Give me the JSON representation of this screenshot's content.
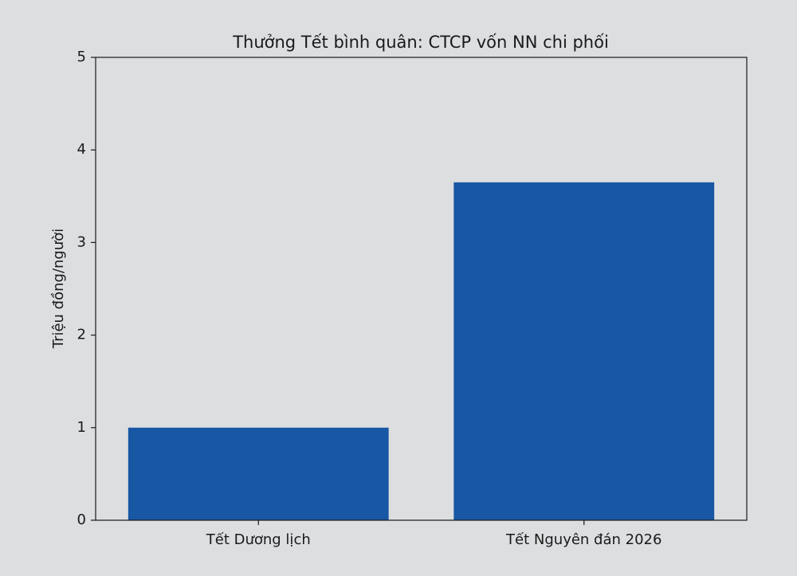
{
  "chart_data": {
    "type": "bar",
    "title": "Thưởng Tết bình quân: CTCP vốn NN chi phối",
    "y_label": "Triệu đồng/người",
    "categories": [
      "Tết Dương lịch",
      "Tết Nguyên đán 2026"
    ],
    "values": [
      1.0,
      3.65
    ],
    "color": "#1857a4",
    "ylim": [
      0,
      5
    ],
    "yticks": [
      0,
      1,
      2,
      3,
      4,
      5
    ]
  }
}
